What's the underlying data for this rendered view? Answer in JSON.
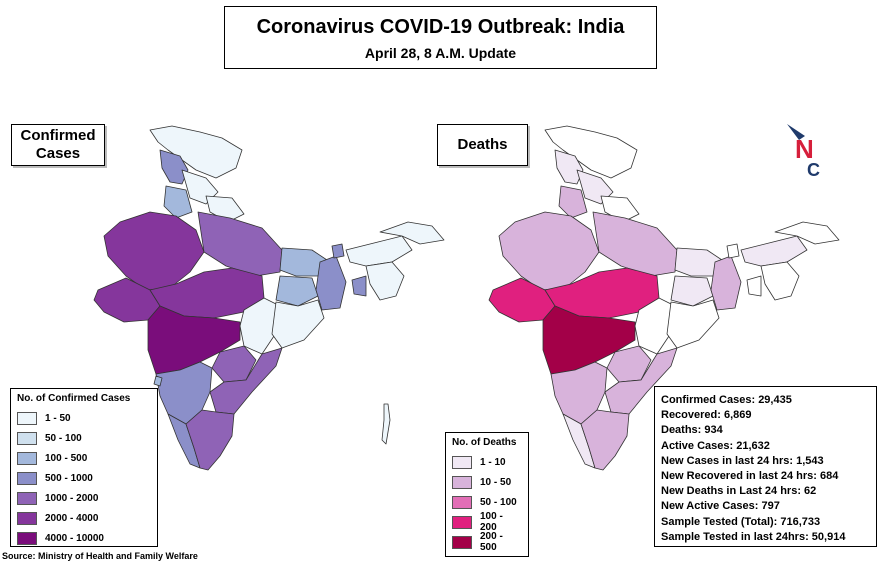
{
  "title": "Coronavirus COVID-19 Outbreak: India",
  "subtitle": "April 28, 8 A.M. Update",
  "maps": {
    "confirmed": {
      "label_line1": "Confirmed",
      "label_line2": "Cases"
    },
    "deaths": {
      "label": "Deaths"
    }
  },
  "legend_confirmed": {
    "title": "No. of Confirmed Cases",
    "items": [
      {
        "label": "1 - 50",
        "color": "#eef6fb"
      },
      {
        "label": "50 - 100",
        "color": "#cfe0ee"
      },
      {
        "label": "100 - 500",
        "color": "#a3b8dc"
      },
      {
        "label": "500 - 1000",
        "color": "#8b8fc9"
      },
      {
        "label": "1000 - 2000",
        "color": "#8f63b6"
      },
      {
        "label": "2000 - 4000",
        "color": "#85369c"
      },
      {
        "label": "4000 - 10000",
        "color": "#7a0d7b"
      }
    ]
  },
  "legend_deaths": {
    "title": "No. of Deaths",
    "items": [
      {
        "label": "1 - 10",
        "color": "#f0e8f4"
      },
      {
        "label": "10 - 50",
        "color": "#d8b3db"
      },
      {
        "label": "50 - 100",
        "color": "#e26eb6"
      },
      {
        "label": "100 - 200",
        "color": "#e0207f"
      },
      {
        "label": "200 - 500",
        "color": "#a30048"
      }
    ]
  },
  "stats": [
    "Confirmed Cases: 29,435",
    "Recovered: 6,869",
    "Deaths: 934",
    "Active Cases:  21,632",
    "New Cases in last 24 hrs: 1,543",
    "New Recovered in last 24 hrs: 684",
    "New Deaths in Last 24 hrs: 62",
    "New Active Cases: 797",
    "Sample Tested (Total): 716,733",
    "Sample Tested in last 24hrs: 50,914"
  ],
  "source": "Source: Ministry of Health and Family Welfare",
  "logo": {
    "letter_n": "N",
    "letter_c": "C",
    "color_n": "#d61f3b",
    "color_c": "#1f3a6b"
  }
}
